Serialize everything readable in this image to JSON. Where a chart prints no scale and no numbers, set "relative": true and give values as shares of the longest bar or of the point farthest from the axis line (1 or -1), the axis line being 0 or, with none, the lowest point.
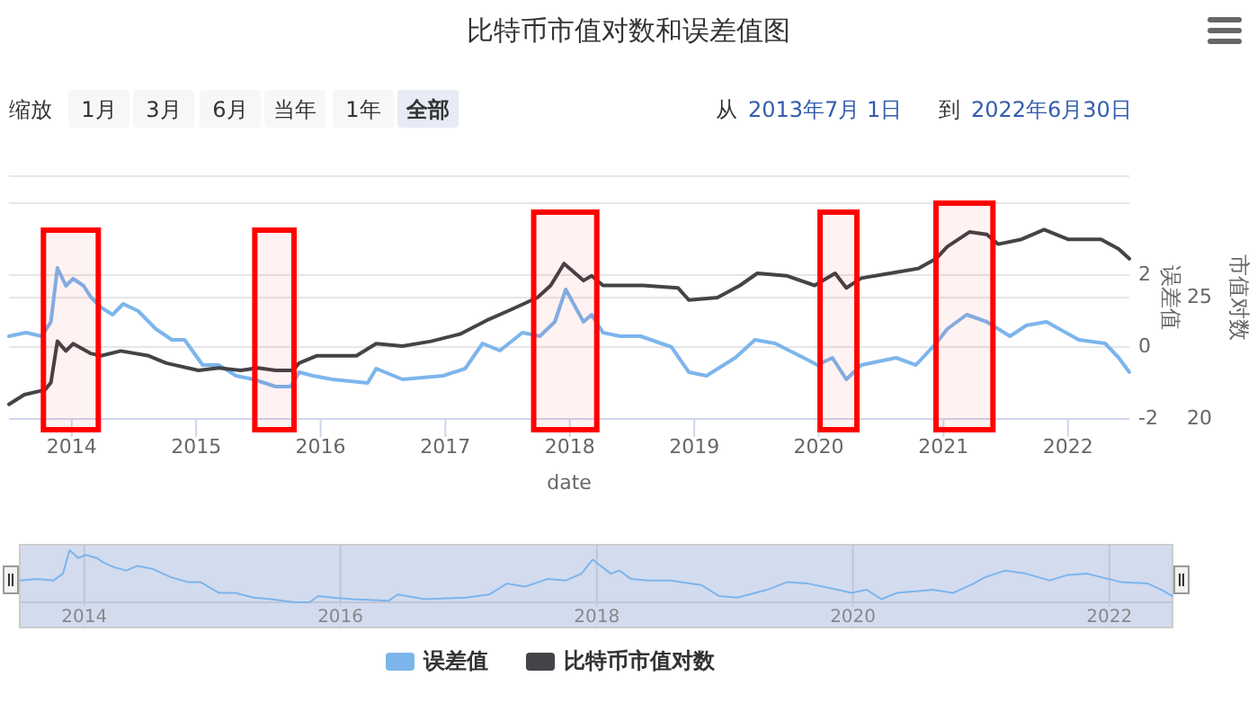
{
  "chart_data": [
    {
      "type": "line",
      "title": "比特币市值对数和误差值图",
      "xlabel": "date",
      "ylabel": "误差值",
      "y2label": "市值对数",
      "annotations": [
        "缩放",
        "1月",
        "3月",
        "6月",
        "当年",
        "1年",
        "全部",
        "从",
        "2013年7月 1日",
        "到",
        "2022年6月30日"
      ],
      "xlim": [
        "2013-07-01",
        "2022-06-30"
      ],
      "xticks": [
        "2014",
        "2015",
        "2016",
        "2017",
        "2018",
        "2019",
        "2020",
        "2021",
        "2022"
      ],
      "ylim": [
        -2,
        4.75
      ],
      "yticks": [
        -2,
        0,
        2,
        {
          "value": 4,
          "label": null
        }
      ],
      "y2lim": [
        20,
        30
      ],
      "y2ticks": [
        20,
        25,
        {
          "value": 30,
          "label": null
        }
      ],
      "grid": "y",
      "legend": "bottom",
      "bands": [
        {
          "axis": "x",
          "from": "2013-10-10",
          "to": "2014-03-20",
          "color": "#ff0000"
        },
        {
          "axis": "x",
          "from": "2015-06-22",
          "to": "2015-10-15",
          "color": "#ff0000"
        },
        {
          "axis": "x",
          "from": "2017-09-17",
          "to": "2018-03-21",
          "color": "#ff0000"
        },
        {
          "axis": "x",
          "from": "2020-01-05",
          "to": "2020-04-22",
          "color": "#ff0000"
        },
        {
          "axis": "x",
          "from": "2020-12-10",
          "to": "2021-05-26",
          "color": "#ff0000"
        }
      ],
      "series": [
        {
          "name": "误差值",
          "color": "#7cb5ec",
          "axis": "y",
          "x": [
            "2013-07-01",
            "2013-08-20",
            "2013-10-05",
            "2013-11-01",
            "2013-11-20",
            "2013-12-15",
            "2014-01-05",
            "2014-02-05",
            "2014-02-25",
            "2014-03-28",
            "2014-05-01",
            "2014-06-01",
            "2014-07-15",
            "2014-09-05",
            "2014-10-22",
            "2014-11-28",
            "2015-01-20",
            "2015-03-08",
            "2015-04-28",
            "2015-06-18",
            "2015-08-22",
            "2015-10-05",
            "2015-10-30",
            "2015-12-10",
            "2016-02-05",
            "2016-05-18",
            "2016-06-12",
            "2016-08-28",
            "2016-12-25",
            "2017-02-28",
            "2017-04-20",
            "2017-06-10",
            "2017-08-15",
            "2017-10-05",
            "2017-11-18",
            "2017-12-20",
            "2018-02-10",
            "2018-03-06",
            "2018-04-08",
            "2018-05-28",
            "2018-07-28",
            "2018-10-26",
            "2018-12-16",
            "2019-02-06",
            "2019-05-01",
            "2019-06-28",
            "2019-08-26",
            "2019-11-18",
            "2019-12-28",
            "2020-02-10",
            "2020-03-22",
            "2020-05-05",
            "2020-08-15",
            "2020-10-12",
            "2020-12-10",
            "2021-01-12",
            "2021-03-10",
            "2021-05-08",
            "2021-07-15",
            "2021-09-01",
            "2021-10-30",
            "2022-02-02",
            "2022-04-20",
            "2022-05-30",
            "2022-06-30"
          ],
          "values": [
            0.3,
            0.4,
            0.3,
            0.7,
            2.2,
            1.7,
            1.9,
            1.7,
            1.4,
            1.1,
            0.9,
            1.2,
            1.0,
            0.5,
            0.2,
            0.2,
            -0.5,
            -0.5,
            -0.8,
            -0.9,
            -1.1,
            -1.1,
            -0.7,
            -0.8,
            -0.9,
            -1.0,
            -0.6,
            -0.9,
            -0.8,
            -0.6,
            0.1,
            -0.1,
            0.4,
            0.3,
            0.7,
            1.6,
            0.7,
            0.9,
            0.4,
            0.3,
            0.3,
            0.0,
            -0.7,
            -0.8,
            -0.3,
            0.2,
            0.1,
            -0.3,
            -0.5,
            -0.3,
            -0.9,
            -0.5,
            -0.3,
            -0.5,
            0.1,
            0.5,
            0.9,
            0.7,
            0.3,
            0.6,
            0.7,
            0.2,
            0.1,
            -0.3,
            -0.7
          ]
        },
        {
          "name": "比特币市值对数",
          "color": "#434348",
          "axis": "y2",
          "x": [
            "2013-07-01",
            "2013-08-15",
            "2013-10-15",
            "2013-11-01",
            "2013-11-20",
            "2013-12-15",
            "2014-01-05",
            "2014-02-25",
            "2014-03-28",
            "2014-05-25",
            "2014-08-15",
            "2014-10-05",
            "2015-01-08",
            "2015-03-08",
            "2015-05-12",
            "2015-07-01",
            "2015-08-22",
            "2015-10-12",
            "2015-10-30",
            "2015-12-20",
            "2016-04-15",
            "2016-06-12",
            "2016-08-28",
            "2016-11-20",
            "2017-02-14",
            "2017-05-08",
            "2017-07-12",
            "2017-09-28",
            "2017-11-06",
            "2017-12-15",
            "2018-02-10",
            "2018-03-06",
            "2018-04-08",
            "2018-04-22",
            "2018-08-03",
            "2018-11-14",
            "2018-12-16",
            "2019-03-10",
            "2019-05-15",
            "2019-07-05",
            "2019-09-28",
            "2019-12-20",
            "2020-02-18",
            "2020-03-22",
            "2020-05-05",
            "2020-07-28",
            "2020-10-20",
            "2020-12-10",
            "2021-01-12",
            "2021-03-18",
            "2021-05-08",
            "2021-06-10",
            "2021-08-18",
            "2021-10-23",
            "2022-01-01",
            "2022-04-08",
            "2022-05-30",
            "2022-06-30"
          ],
          "values": [
            20.6,
            21.0,
            21.2,
            21.5,
            23.2,
            22.8,
            23.1,
            22.7,
            22.6,
            22.8,
            22.6,
            22.3,
            22.0,
            22.1,
            22.0,
            22.1,
            22.0,
            22.0,
            22.3,
            22.6,
            22.6,
            23.1,
            23.0,
            23.2,
            23.5,
            24.1,
            24.5,
            25.0,
            25.5,
            26.4,
            25.7,
            25.9,
            25.5,
            25.5,
            25.5,
            25.4,
            24.9,
            25.0,
            25.5,
            26.0,
            25.9,
            25.5,
            26.0,
            25.4,
            25.8,
            26.0,
            26.2,
            26.6,
            27.1,
            27.7,
            27.6,
            27.2,
            27.4,
            27.8,
            27.4,
            27.4,
            27.0,
            26.6
          ]
        }
      ]
    },
    {
      "type": "line",
      "relative": true,
      "tick_labels": "x",
      "grid": "x",
      "xlim": [
        "2013-07-01",
        "2022-06-30"
      ],
      "xticks": [
        "2014",
        "2016",
        "2018",
        "2020",
        "2022"
      ],
      "series": [
        {
          "color": "#7cb5ec",
          "x": [
            "2013-07-01",
            "2013-08-20",
            "2013-10-05",
            "2013-11-01",
            "2013-11-20",
            "2013-12-15",
            "2014-01-05",
            "2014-02-05",
            "2014-02-25",
            "2014-03-28",
            "2014-05-01",
            "2014-06-01",
            "2014-07-15",
            "2014-09-05",
            "2014-10-22",
            "2014-11-28",
            "2015-01-20",
            "2015-03-08",
            "2015-04-28",
            "2015-06-18",
            "2015-08-22",
            "2015-10-05",
            "2015-10-30",
            "2015-12-10",
            "2016-02-05",
            "2016-05-18",
            "2016-06-12",
            "2016-08-28",
            "2016-12-25",
            "2017-02-28",
            "2017-04-20",
            "2017-06-10",
            "2017-08-15",
            "2017-10-05",
            "2017-11-18",
            "2017-12-20",
            "2018-02-10",
            "2018-03-06",
            "2018-04-08",
            "2018-05-28",
            "2018-07-28",
            "2018-10-26",
            "2018-12-16",
            "2019-02-06",
            "2019-05-01",
            "2019-06-28",
            "2019-08-26",
            "2019-11-18",
            "2019-12-28",
            "2020-02-10",
            "2020-03-22",
            "2020-05-05",
            "2020-08-15",
            "2020-10-12",
            "2020-12-10",
            "2021-01-12",
            "2021-03-10",
            "2021-05-08",
            "2021-07-15",
            "2021-09-01",
            "2021-10-30",
            "2022-02-02",
            "2022-04-20",
            "2022-05-30",
            "2022-06-30"
          ],
          "values": [
            0.42,
            0.45,
            0.42,
            0.55,
            1,
            0.85,
            0.91,
            0.85,
            0.76,
            0.67,
            0.61,
            0.7,
            0.64,
            0.48,
            0.39,
            0.39,
            0.18,
            0.18,
            0.09,
            0.06,
            0,
            0,
            0.12,
            0.09,
            0.06,
            0.03,
            0.15,
            0.06,
            0.09,
            0.15,
            0.36,
            0.3,
            0.45,
            0.42,
            0.55,
            0.82,
            0.55,
            0.61,
            0.45,
            0.42,
            0.42,
            0.33,
            0.12,
            0.09,
            0.24,
            0.39,
            0.36,
            0.24,
            0.18,
            0.24,
            0.06,
            0.18,
            0.24,
            0.18,
            0.36,
            0.48,
            0.61,
            0.55,
            0.42,
            0.52,
            0.55,
            0.39,
            0.36,
            0.24,
            0.12
          ]
        }
      ]
    }
  ]
}
